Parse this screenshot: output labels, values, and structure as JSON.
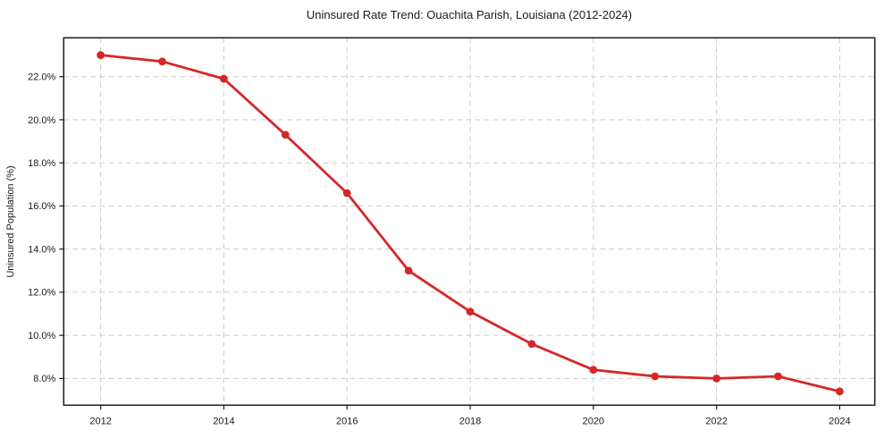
{
  "chart_data": {
    "type": "line",
    "title": "Uninsured Rate Trend: Ouachita Parish, Louisiana (2012-2024)",
    "xlabel": "",
    "ylabel": "Uninsured Population (%)",
    "x": [
      2012,
      2013,
      2014,
      2015,
      2016,
      2017,
      2018,
      2019,
      2020,
      2021,
      2022,
      2023,
      2024
    ],
    "values": [
      23.0,
      22.7,
      21.9,
      19.3,
      16.6,
      13.0,
      11.1,
      9.6,
      8.4,
      8.1,
      8.0,
      8.1,
      7.4
    ],
    "xticks": [
      2012,
      2014,
      2016,
      2018,
      2020,
      2022,
      2024
    ],
    "xtick_labels": [
      "2012",
      "2014",
      "2016",
      "2018",
      "2020",
      "2022",
      "2024"
    ],
    "yticks": [
      8,
      10,
      12,
      14,
      16,
      18,
      20,
      22
    ],
    "ytick_labels": [
      "8.0%",
      "10.0%",
      "12.0%",
      "14.0%",
      "16.0%",
      "18.0%",
      "20.0%",
      "22.0%"
    ],
    "xlim": [
      2011.4,
      2024.57
    ],
    "ylim": [
      6.76,
      23.8
    ],
    "grid": true,
    "grid_style": "dashed",
    "legend": "none",
    "colors": {
      "line": "#d62728",
      "marker": "#d62728",
      "grid": "#cccccc",
      "spine": "#1a1a1a",
      "text": "#1a1a1a",
      "background": "#ffffff"
    }
  }
}
